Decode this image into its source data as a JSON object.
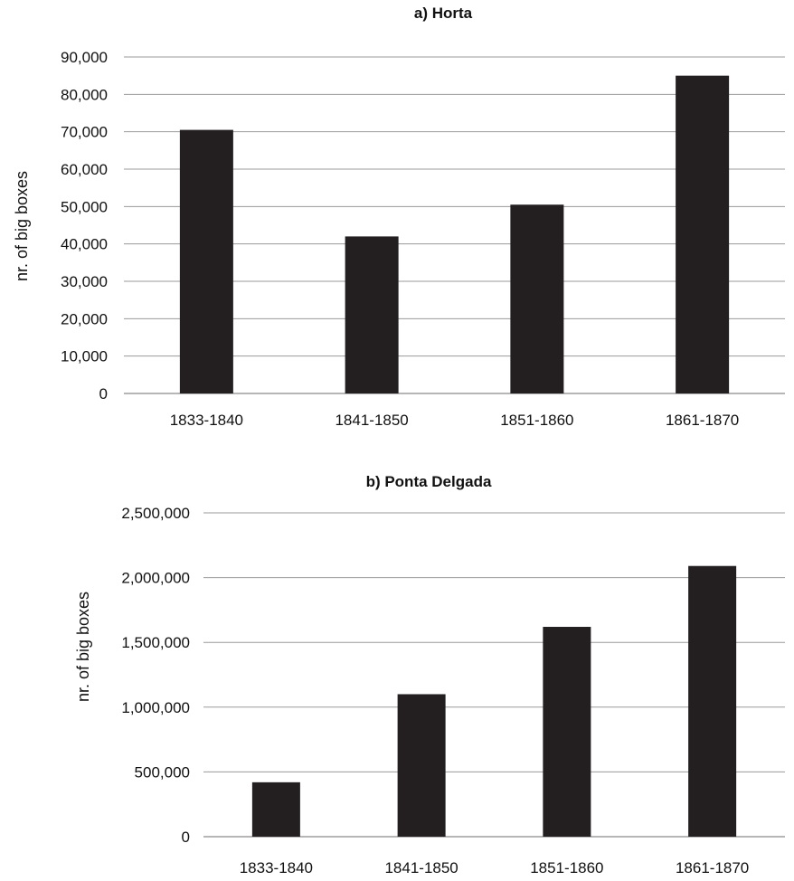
{
  "chart_data": [
    {
      "type": "bar",
      "title": "a) Horta",
      "ylabel": "nr. of big boxes",
      "xlabel": "",
      "categories": [
        "1833-1840",
        "1841-1850",
        "1851-1860",
        "1861-1870"
      ],
      "values": [
        70500,
        42000,
        50500,
        85000
      ],
      "ylim": [
        0,
        90000
      ],
      "yticks": [
        0,
        10000,
        20000,
        30000,
        40000,
        50000,
        60000,
        70000,
        80000,
        90000
      ],
      "ytick_labels": [
        "0",
        "10,000",
        "20,000",
        "30,000",
        "40,000",
        "50,000",
        "60,000",
        "70,000",
        "80,000",
        "90,000"
      ],
      "grid": true,
      "bar_color": "#231f20"
    },
    {
      "type": "bar",
      "title": "b) Ponta Delgada",
      "ylabel": "nr. of big boxes",
      "xlabel": "",
      "categories": [
        "1833-1840",
        "1841-1850",
        "1851-1860",
        "1861-1870"
      ],
      "values": [
        420000,
        1100000,
        1620000,
        2090000
      ],
      "ylim": [
        0,
        2500000
      ],
      "yticks": [
        0,
        500000,
        1000000,
        1500000,
        2000000,
        2500000
      ],
      "ytick_labels": [
        "0",
        "500,000",
        "1,000,000",
        "1,500,000",
        "2,000,000",
        "2,500,000"
      ],
      "grid": true,
      "bar_color": "#231f20"
    }
  ]
}
